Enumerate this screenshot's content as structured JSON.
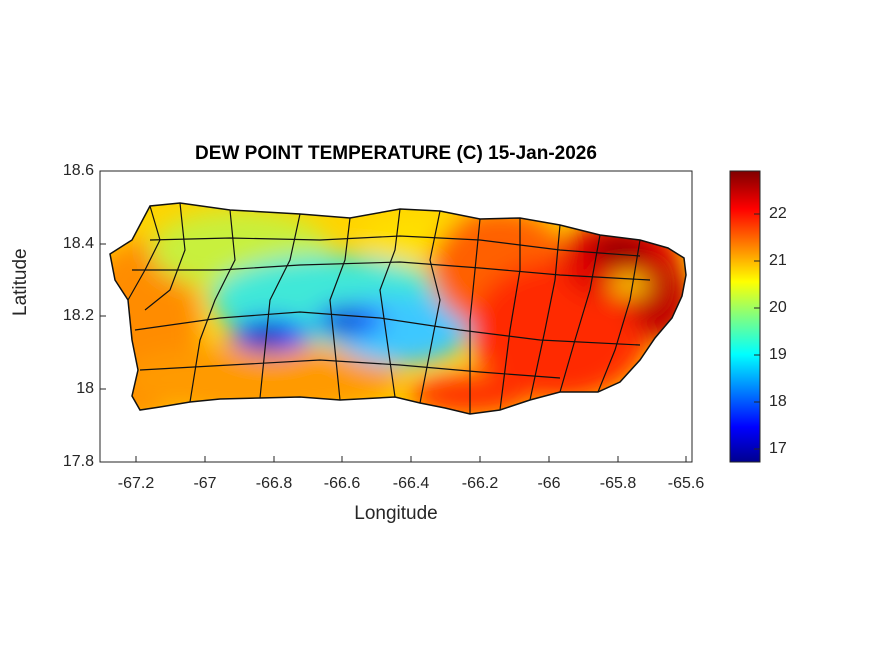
{
  "title": "DEW POINT TEMPERATURE (C) 15-Jan-2026",
  "xlabel": "Longitude",
  "ylabel": "Latitude",
  "chart_data": {
    "type": "heatmap",
    "title": "DEW POINT TEMPERATURE (C) 15-Jan-2026",
    "xlabel": "Longitude",
    "ylabel": "Latitude",
    "xlim": [
      -67.3,
      -65.58
    ],
    "ylim": [
      17.8,
      18.6
    ],
    "x_ticks": [
      "-67.2",
      "-67",
      "-66.8",
      "-66.6",
      "-66.4",
      "-66.2",
      "-66",
      "-65.8",
      "-65.6"
    ],
    "y_ticks": [
      "17.8",
      "18",
      "18.2",
      "18.4",
      "18.6"
    ],
    "colorbar": {
      "colormap": "jet",
      "range": [
        16.7,
        22.9
      ],
      "ticks": [
        "17",
        "18",
        "19",
        "20",
        "21",
        "22"
      ]
    },
    "description_values": {
      "west_coast": 21.3,
      "central_mountains_min": 17.2,
      "north_central": 20.5,
      "east_max": 22.8,
      "south_coast": 21.8
    }
  }
}
